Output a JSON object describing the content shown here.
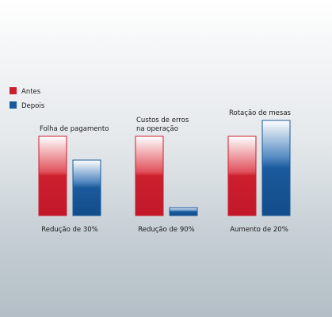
{
  "legend": {
    "before_label": "Antes",
    "after_label": "Depois",
    "before_color": "#cc1f2e",
    "after_color": "#1a5a9c"
  },
  "chart_data": {
    "type": "bar",
    "legend_position": "top-left",
    "grid": false,
    "categories": [
      "Folha de pagamento",
      "Custos de erros na operação",
      "Rotação de mesas"
    ],
    "category_title_lines": [
      [
        "Folha de pagamento"
      ],
      [
        "Custos de erros",
        "na operação"
      ],
      [
        "Rotação de mesas"
      ]
    ],
    "series": [
      {
        "name": "Antes",
        "values": [
          100,
          100,
          100
        ]
      },
      {
        "name": "Depois",
        "values": [
          70,
          10,
          120
        ]
      }
    ],
    "annotations": [
      "Redução de 30%",
      "Redução de 90%",
      "Aumento de 20%"
    ],
    "ylim": [
      0,
      120
    ]
  }
}
